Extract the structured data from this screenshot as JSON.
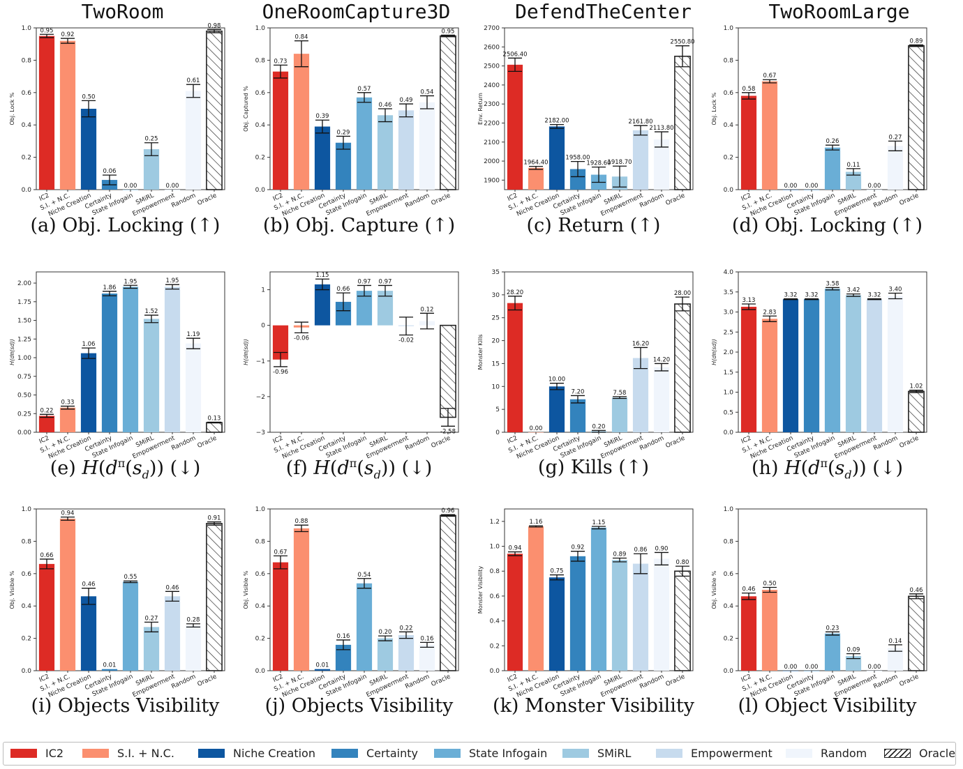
{
  "columns": [
    "TwoRoom",
    "OneRoomCapture3D",
    "DefendTheCenter",
    "TwoRoomLarge"
  ],
  "categories": [
    "IC2",
    "S.I. + N.C.",
    "Niche Creation",
    "Certainty",
    "State Infogain",
    "SMiRL",
    "Empowerment",
    "Random",
    "Oracle"
  ],
  "colors": [
    "#dd2b25",
    "#fb8f6f",
    "#0d56a0",
    "#3383bd",
    "#6aaed6",
    "#9ecae1",
    "#c7dbee",
    "#f0f5fc",
    "#ffffff"
  ],
  "legend": {
    "items": [
      {
        "label": "IC2",
        "color": "#dd2b25"
      },
      {
        "label": "S.I. + N.C.",
        "color": "#fb8f6f"
      },
      {
        "label": "Niche Creation",
        "color": "#0d56a0"
      },
      {
        "label": "Certainty",
        "color": "#3383bd"
      },
      {
        "label": "State Infogain",
        "color": "#6aaed6"
      },
      {
        "label": "SMiRL",
        "color": "#9ecae1"
      },
      {
        "label": "Empowerment",
        "color": "#c7dbee"
      },
      {
        "label": "Random",
        "color": "#f0f5fc"
      },
      {
        "label": "Oracle",
        "color": "#ffffff",
        "hatched": true
      }
    ]
  },
  "chart_data": [
    {
      "type": "bar",
      "caption": "(a) Obj. Locking (↑)",
      "ylabel": "Obj. Lock %",
      "ylim": [
        0,
        1.0
      ],
      "yticks": [
        "0.0",
        "0.2",
        "0.4",
        "0.6",
        "0.8",
        "1.0"
      ],
      "values": [
        0.95,
        0.92,
        0.5,
        0.06,
        0.0,
        0.25,
        0.0,
        0.61,
        0.98
      ],
      "errors": [
        0.01,
        0.015,
        0.05,
        0.03,
        0,
        0.04,
        0,
        0.04,
        0.01
      ],
      "labels": [
        "0.95",
        "0.92",
        "0.50",
        "0.06",
        "0.00",
        "0.25",
        "0.00",
        "0.61",
        "0.98"
      ]
    },
    {
      "type": "bar",
      "caption": "(b) Obj. Capture (↑)",
      "ylabel": "Obj. Captured %",
      "ylim": [
        0,
        1.0
      ],
      "yticks": [
        "0.0",
        "0.2",
        "0.4",
        "0.6",
        "0.8",
        "1.0"
      ],
      "values": [
        0.73,
        0.84,
        0.39,
        0.29,
        0.57,
        0.46,
        0.49,
        0.54,
        0.95
      ],
      "errors": [
        0.04,
        0.08,
        0.04,
        0.04,
        0.03,
        0.04,
        0.04,
        0.04,
        0.005
      ],
      "labels": [
        "0.73",
        "0.84",
        "0.39",
        "0.29",
        "0.57",
        "0.46",
        "0.49",
        "0.54",
        "0.95"
      ]
    },
    {
      "type": "bar",
      "caption": "(c) Return (↑)",
      "ylabel": "Env. Return",
      "ylim": [
        1850,
        2700
      ],
      "yticks": [
        "1900",
        "2000",
        "2100",
        "2200",
        "2300",
        "2400",
        "2500",
        "2600",
        "2700"
      ],
      "values": [
        2506.4,
        1964.4,
        2182.0,
        1958.0,
        1928.6,
        1918.7,
        2161.8,
        2113.8,
        2550.8
      ],
      "errors": [
        35,
        8,
        10,
        40,
        40,
        55,
        25,
        40,
        55
      ],
      "labels": [
        "2506.40",
        "1964.40",
        "2182.00",
        "1958.00",
        "1928.60",
        "1918.70",
        "2161.80",
        "2113.80",
        "2550.80"
      ]
    },
    {
      "type": "bar",
      "caption": "(d) Obj. Locking (↑)",
      "ylabel": "Obj. Lock %",
      "ylim": [
        0,
        1.0
      ],
      "yticks": [
        "0.0",
        "0.2",
        "0.4",
        "0.6",
        "0.8",
        "1.0"
      ],
      "values": [
        0.58,
        0.67,
        0.0,
        0.0,
        0.26,
        0.11,
        0.0,
        0.27,
        0.89
      ],
      "errors": [
        0.02,
        0.01,
        0,
        0,
        0.015,
        0.02,
        0,
        0.03,
        0.005
      ],
      "labels": [
        "0.58",
        "0.67",
        "0.00",
        "0.00",
        "0.26",
        "0.11",
        "0.00",
        "0.27",
        "0.89"
      ]
    },
    {
      "type": "bar",
      "caption": "(e) H(d^π(s_d)) (↓)",
      "ylabel": "H(d^π(s_d))",
      "ylim": [
        0,
        2.15
      ],
      "yticks": [
        "0.00",
        "0.25",
        "0.50",
        "0.75",
        "1.00",
        "1.25",
        "1.50",
        "1.75",
        "2.00"
      ],
      "values": [
        0.22,
        0.33,
        1.06,
        1.86,
        1.95,
        1.52,
        1.95,
        1.19,
        0.13
      ],
      "errors": [
        0.02,
        0.02,
        0.07,
        0.03,
        0.02,
        0.05,
        0.03,
        0.07,
        0.005
      ],
      "labels": [
        "0.22",
        "0.33",
        "1.06",
        "1.86",
        "1.95",
        "1.52",
        "1.95",
        "1.19",
        "0.13"
      ]
    },
    {
      "type": "bar",
      "caption": "(f) H(d^π(s_d)) (↓)",
      "ylabel": "H(d^π(s_d))",
      "ylim": [
        -3,
        1.5
      ],
      "yticks": [
        "−3",
        "−2",
        "−1",
        "0",
        "1"
      ],
      "values": [
        -0.96,
        -0.06,
        1.15,
        0.66,
        0.97,
        0.97,
        -0.02,
        0.12,
        -2.58
      ],
      "errors": [
        0.2,
        0.15,
        0.15,
        0.25,
        0.15,
        0.15,
        0.25,
        0.22,
        0.25
      ],
      "labels": [
        "-0.96",
        "-0.06",
        "1.15",
        "0.66",
        "0.97",
        "0.97",
        "-0.02",
        "0.12",
        "-2.58"
      ]
    },
    {
      "type": "bar",
      "caption": "(g) Kills (↑)",
      "ylabel": "Monster Kills",
      "ylim": [
        0,
        35
      ],
      "yticks": [
        "0",
        "5",
        "10",
        "15",
        "20",
        "25",
        "30",
        "35"
      ],
      "values": [
        28.2,
        0.0,
        10.0,
        7.2,
        0.2,
        7.58,
        16.2,
        14.2,
        28.0
      ],
      "errors": [
        1.5,
        0,
        0.7,
        0.8,
        0.2,
        0.2,
        2.3,
        0.8,
        1.5
      ],
      "labels": [
        "28.20",
        "0.00",
        "10.00",
        "7.20",
        "0.20",
        "7.58",
        "16.20",
        "14.20",
        "28.00"
      ]
    },
    {
      "type": "bar",
      "caption": "(h) H(d^π(s_d)) (↓)",
      "ylabel": "H(d^π(s_d))",
      "ylim": [
        0,
        4.0
      ],
      "yticks": [
        "0.0",
        "0.5",
        "1.0",
        "1.5",
        "2.0",
        "2.5",
        "3.0",
        "3.5",
        "4.0"
      ],
      "values": [
        3.13,
        2.83,
        3.32,
        3.32,
        3.58,
        3.42,
        3.32,
        3.4,
        1.02
      ],
      "errors": [
        0.07,
        0.07,
        0.01,
        0.01,
        0.03,
        0.03,
        0.01,
        0.07,
        0.03
      ],
      "labels": [
        "3.13",
        "2.83",
        "3.32",
        "3.32",
        "3.58",
        "3.42",
        "3.32",
        "3.40",
        "1.02"
      ]
    },
    {
      "type": "bar",
      "caption": "(i) Objects Visibility",
      "ylabel": "Obj. Visible %",
      "ylim": [
        0,
        1.0
      ],
      "yticks": [
        "0.0",
        "0.2",
        "0.4",
        "0.6",
        "0.8",
        "1.0"
      ],
      "values": [
        0.66,
        0.94,
        0.46,
        0.01,
        0.55,
        0.27,
        0.46,
        0.28,
        0.91
      ],
      "errors": [
        0.03,
        0.01,
        0.05,
        0,
        0.005,
        0.03,
        0.03,
        0.01,
        0.01
      ],
      "labels": [
        "0.66",
        "0.94",
        "0.46",
        "0.01",
        "0.55",
        "0.27",
        "0.46",
        "0.28",
        "0.91"
      ]
    },
    {
      "type": "bar",
      "caption": "(j) Objects Visibility",
      "ylabel": "Obj. Visible %",
      "ylim": [
        0,
        1.0
      ],
      "yticks": [
        "0.0",
        "0.2",
        "0.4",
        "0.6",
        "0.8",
        "1.0"
      ],
      "values": [
        0.67,
        0.88,
        0.01,
        0.16,
        0.54,
        0.2,
        0.22,
        0.16,
        0.96
      ],
      "errors": [
        0.04,
        0.02,
        0,
        0.03,
        0.03,
        0.015,
        0.02,
        0.015,
        0.005
      ],
      "labels": [
        "0.67",
        "0.88",
        "0.01",
        "0.16",
        "0.54",
        "0.20",
        "0.22",
        "0.16",
        "0.96"
      ]
    },
    {
      "type": "bar",
      "caption": "(k) Monster Visibility",
      "ylabel": "Monster Visibility",
      "ylim": [
        0,
        1.3
      ],
      "yticks": [
        "0.0",
        "0.2",
        "0.4",
        "0.6",
        "0.8",
        "1.0",
        "1.2"
      ],
      "values": [
        0.94,
        1.16,
        0.75,
        0.92,
        1.15,
        0.89,
        0.86,
        0.9,
        0.8
      ],
      "errors": [
        0.015,
        0.005,
        0.02,
        0.04,
        0.01,
        0.015,
        0.08,
        0.05,
        0.04
      ],
      "labels": [
        "0.94",
        "1.16",
        "0.75",
        "0.92",
        "1.15",
        "0.89",
        "0.86",
        "0.90",
        "0.80"
      ]
    },
    {
      "type": "bar",
      "caption": "(l) Object Visibility",
      "ylabel": "Obj. Visible %",
      "ylim": [
        0,
        1.0
      ],
      "yticks": [
        "0.0",
        "0.2",
        "0.4",
        "0.6",
        "0.8",
        "1.0"
      ],
      "values": [
        0.46,
        0.5,
        0.0,
        0.0,
        0.23,
        0.09,
        0.0,
        0.14,
        0.46
      ],
      "errors": [
        0.02,
        0.015,
        0,
        0,
        0.01,
        0.015,
        0,
        0.02,
        0.015
      ],
      "labels": [
        "0.46",
        "0.50",
        "0.00",
        "0.00",
        "0.23",
        "0.09",
        "0.00",
        "0.14",
        "0.46"
      ]
    }
  ]
}
